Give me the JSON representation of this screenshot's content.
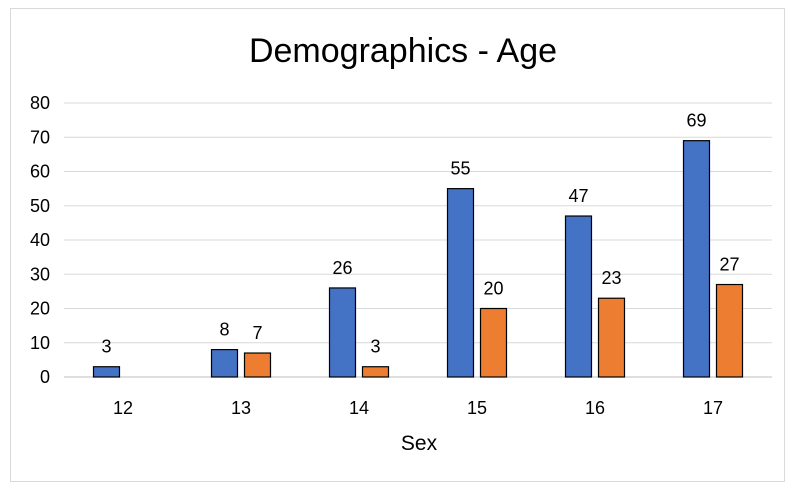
{
  "chart_data": {
    "type": "bar",
    "title": "Demographics - Age",
    "xlabel": "Sex",
    "ylabel": "",
    "categories": [
      "12",
      "13",
      "14",
      "15",
      "16",
      "17"
    ],
    "series": [
      {
        "color": "#4472c4",
        "values": [
          3,
          8,
          26,
          55,
          47,
          69
        ]
      },
      {
        "color": "#ed7d31",
        "values": [
          0,
          7,
          3,
          20,
          23,
          27
        ]
      }
    ],
    "data_labels_hidden_for_zero": true,
    "ylim": [
      0,
      80
    ],
    "yticks": [
      "0",
      "10",
      "20",
      "30",
      "40",
      "50",
      "60",
      "70",
      "80"
    ],
    "grid": true,
    "legend": "none"
  }
}
